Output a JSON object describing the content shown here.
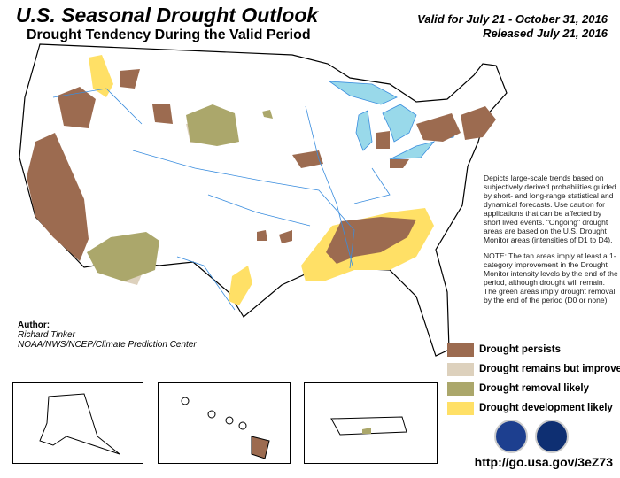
{
  "header": {
    "title": "U.S. Seasonal Drought Outlook",
    "subtitle": "Drought Tendency During the Valid Period",
    "valid": "Valid for July 21 - October 31, 2016",
    "released": "Released July 21, 2016"
  },
  "description": "Depicts large-scale trends based on subjectively derived probabilities guided by short- and long-range statistical and dynamical forecasts. Use caution for applications that can be affected by short lived events. \"Ongoing\" drought areas are based on the U.S. Drought Monitor areas (intensities of D1 to D4).",
  "note": "NOTE: The tan areas imply at least a 1-category improvement in the Drought Monitor intensity levels by the end of the period, although drought will remain. The green areas imply drought removal by the end of the period (D0 or none).",
  "legend": [
    {
      "label": "Drought persists",
      "color": "#9c6b50"
    },
    {
      "label": "Drought remains but improves",
      "color": "#ddd1bd"
    },
    {
      "label": "Drought removal likely",
      "color": "#aba76b"
    },
    {
      "label": "Drought development likely",
      "color": "#ffe066"
    }
  ],
  "author": {
    "heading": "Author:",
    "name": "Richard Tinker",
    "org": "NOAA/NWS/NCEP/Climate Prediction Center"
  },
  "url": "http://go.usa.gov/3eZ73",
  "colors": {
    "water": "#99d9ea",
    "rivers": "#3a8dde",
    "land": "#ffffff"
  },
  "logos": [
    "noaa-logo",
    "nws-logo"
  ]
}
